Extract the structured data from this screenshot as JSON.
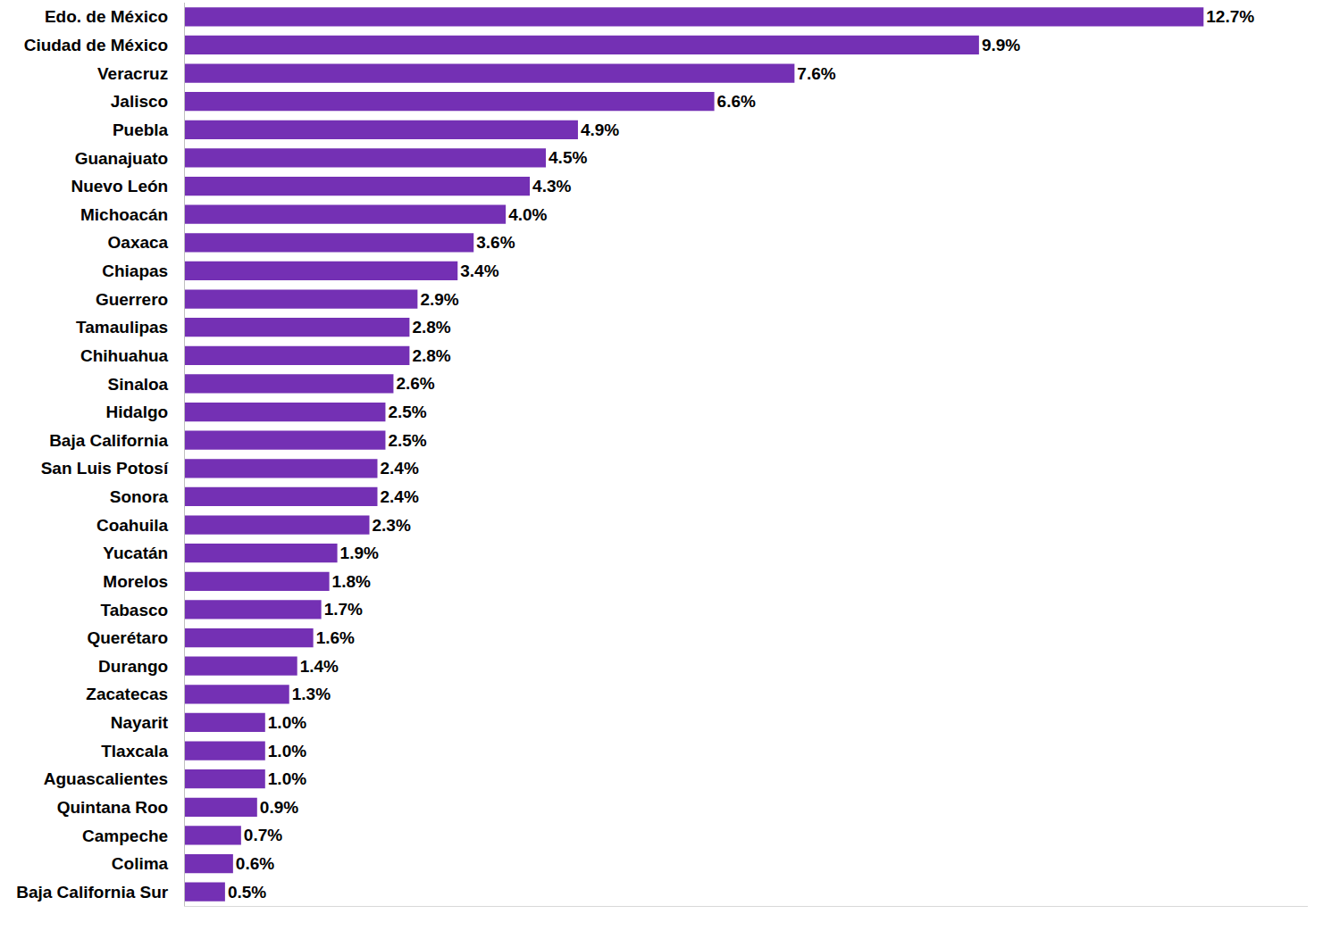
{
  "chart_data": {
    "type": "bar",
    "orientation": "horizontal",
    "categories": [
      "Edo. de México",
      "Ciudad de México",
      "Veracruz",
      "Jalisco",
      "Puebla",
      "Guanajuato",
      "Nuevo León",
      "Michoacán",
      "Oaxaca",
      "Chiapas",
      "Guerrero",
      "Tamaulipas",
      "Chihuahua",
      "Sinaloa",
      "Hidalgo",
      "Baja California",
      "San Luis Potosí",
      "Sonora",
      "Coahuila",
      "Yucatán",
      "Morelos",
      "Tabasco",
      "Querétaro",
      "Durango",
      "Zacatecas",
      "Nayarit",
      "Tlaxcala",
      "Aguascalientes",
      "Quintana Roo",
      "Campeche",
      "Colima",
      "Baja California Sur"
    ],
    "values": [
      12.7,
      9.9,
      7.6,
      6.6,
      4.9,
      4.5,
      4.3,
      4.0,
      3.6,
      3.4,
      2.9,
      2.8,
      2.8,
      2.6,
      2.5,
      2.5,
      2.4,
      2.4,
      2.3,
      1.9,
      1.8,
      1.7,
      1.6,
      1.4,
      1.3,
      1.0,
      1.0,
      1.0,
      0.9,
      0.7,
      0.6,
      0.5
    ],
    "value_labels": [
      "12.7%",
      "9.9%",
      "7.6%",
      "6.6%",
      "4.9%",
      "4.5%",
      "4.3%",
      "4.0%",
      "3.6%",
      "3.4%",
      "2.9%",
      "2.8%",
      "2.8%",
      "2.6%",
      "2.5%",
      "2.5%",
      "2.4%",
      "2.4%",
      "2.3%",
      "1.9%",
      "1.8%",
      "1.7%",
      "1.6%",
      "1.4%",
      "1.3%",
      "1.0%",
      "1.0%",
      "1.0%",
      "0.9%",
      "0.7%",
      "0.6%",
      "0.5%"
    ],
    "color": "#7430b4",
    "xlim": [
      0,
      14
    ],
    "data_labels": true,
    "tick_labels": "y",
    "grid": false
  }
}
